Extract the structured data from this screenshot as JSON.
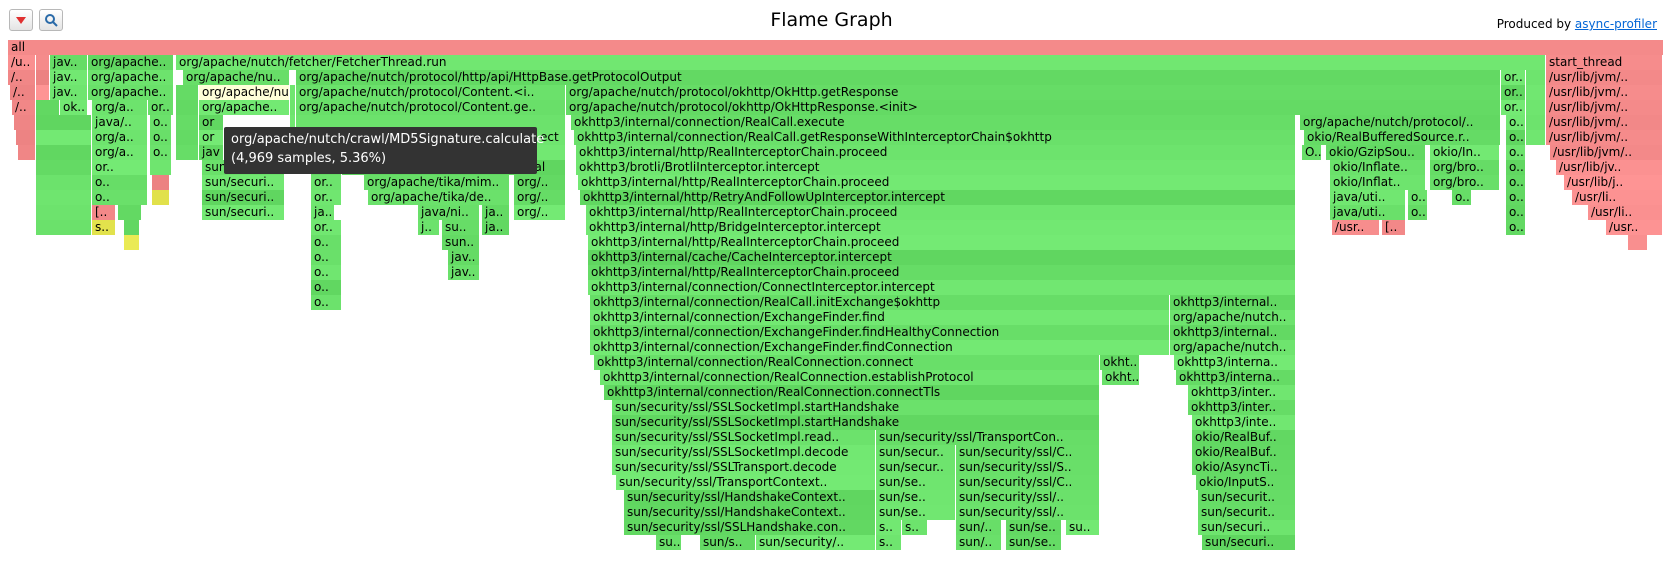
{
  "title": "Flame Graph",
  "produced_by": {
    "prefix": "Produced by ",
    "link_text": "async-profiler"
  },
  "toolbar": [
    {
      "name": "reverse-button",
      "icon": "triangle-down-icon"
    },
    {
      "name": "search-button",
      "icon": "magnifier-icon"
    }
  ],
  "colors": {
    "java": "#6ae06a",
    "native": "#f48a8a",
    "inline": "#e6e650",
    "c1": "#f0a050",
    "highlight": "#ffffd8",
    "root": "#f48a8a"
  },
  "tooltip": {
    "name": "org/apache/nutch/crawl/MD5Signature.calculate",
    "info": "(4,969 samples, 5.36%)"
  },
  "frames": [
    [
      "all",
      0,
      8,
      1663,
      "root"
    ],
    [
      "/u..",
      1,
      8,
      28,
      "native"
    ],
    [
      "",
      1,
      36,
      14,
      "native"
    ],
    [
      "jav..",
      1,
      50,
      38,
      "java"
    ],
    [
      "org/apache..",
      1,
      88,
      86,
      "java"
    ],
    [
      "org/apache/nutch/fetcher/FetcherThread.run",
      1,
      176,
      1370,
      "java"
    ],
    [
      "start_thread",
      1,
      1546,
      117,
      "native"
    ],
    [
      "/..",
      2,
      8,
      28,
      "native"
    ],
    [
      "",
      2,
      36,
      14,
      "native"
    ],
    [
      "jav..",
      2,
      50,
      38,
      "java"
    ],
    [
      "org/apache..",
      2,
      88,
      86,
      "java"
    ],
    [
      "org/apache/nu..",
      2,
      183,
      107,
      "java"
    ],
    [
      "org/apache/nutch/protocol/http/api/HttpBase.getProtocolOutput",
      2,
      296,
      1205,
      "java"
    ],
    [
      "or..",
      2,
      1501,
      25,
      "java"
    ],
    [
      "",
      2,
      1526,
      20,
      "java"
    ],
    [
      "/usr/lib/jvm/..",
      2,
      1546,
      117,
      "native"
    ],
    [
      "/..",
      3,
      10,
      26,
      "native"
    ],
    [
      "",
      3,
      36,
      14,
      "native"
    ],
    [
      "jav..",
      3,
      50,
      38,
      "java"
    ],
    [
      "org/apache..",
      3,
      88,
      86,
      "java"
    ],
    [
      "",
      3,
      176,
      23,
      "java"
    ],
    [
      "org/apache/nu",
      3,
      199,
      91,
      "highlight"
    ],
    [
      "",
      3,
      290,
      6,
      "java"
    ],
    [
      "org/apache/nutch/protocol/Content.<i..",
      3,
      296,
      270,
      "java"
    ],
    [
      "org/apache/nutch/protocol/okhttp/OkHttp.getResponse",
      3,
      566,
      935,
      "java"
    ],
    [
      "or..",
      3,
      1501,
      25,
      "java"
    ],
    [
      "",
      3,
      1526,
      20,
      "java"
    ],
    [
      "/usr/lib/jvm/..",
      3,
      1546,
      117,
      "native"
    ],
    [
      "/..",
      4,
      12,
      24,
      "native"
    ],
    [
      "",
      4,
      36,
      24,
      "java"
    ],
    [
      "ok..",
      4,
      60,
      28,
      "java"
    ],
    [
      "org/a..",
      4,
      92,
      56,
      "java"
    ],
    [
      "or..",
      4,
      148,
      26,
      "java"
    ],
    [
      "",
      4,
      176,
      23,
      "java"
    ],
    [
      "org/apache..",
      4,
      199,
      91,
      "java"
    ],
    [
      "",
      4,
      290,
      6,
      "java"
    ],
    [
      "org/apache/nutch/protocol/Content.ge..",
      4,
      296,
      270,
      "java"
    ],
    [
      "org/apache/nutch/protocol/okhttp/OkHttpResponse.<init>",
      4,
      566,
      935,
      "java"
    ],
    [
      "or..",
      4,
      1501,
      25,
      "java"
    ],
    [
      "",
      4,
      1526,
      20,
      "java"
    ],
    [
      "/usr/lib/jvm/..",
      4,
      1546,
      117,
      "native"
    ],
    [
      "",
      5,
      14,
      22,
      "native"
    ],
    [
      "",
      5,
      36,
      56,
      "java"
    ],
    [
      "java/..",
      5,
      92,
      56,
      "java"
    ],
    [
      "o..",
      5,
      150,
      22,
      "java"
    ],
    [
      "",
      5,
      176,
      23,
      "java"
    ],
    [
      "or",
      5,
      199,
      25,
      "java"
    ],
    [
      "",
      5,
      290,
      6,
      "java"
    ],
    [
      "",
      5,
      296,
      270,
      "java"
    ],
    [
      "okhttp3/internal/connection/RealCall.execute",
      5,
      571,
      725,
      "java"
    ],
    [
      "org/apache/nutch/protocol/..",
      5,
      1300,
      201,
      "java"
    ],
    [
      "o..",
      5,
      1506,
      20,
      "java"
    ],
    [
      "",
      5,
      1526,
      20,
      "java"
    ],
    [
      "/usr/lib/jvm/..",
      5,
      1546,
      117,
      "native"
    ],
    [
      "",
      6,
      16,
      20,
      "native"
    ],
    [
      "",
      6,
      36,
      56,
      "java"
    ],
    [
      "org/a..",
      6,
      92,
      56,
      "java"
    ],
    [
      "o..",
      6,
      150,
      22,
      "java"
    ],
    [
      "",
      6,
      176,
      23,
      "java"
    ],
    [
      "or",
      6,
      199,
      25,
      "java"
    ],
    [
      "ect",
      6,
      537,
      29,
      "java"
    ],
    [
      "okhttp3/internal/connection/RealCall.getResponseWithInterceptorChain$okhttp",
      6,
      574,
      722,
      "java"
    ],
    [
      "okio/RealBufferedSource.r..",
      6,
      1304,
      197,
      "java"
    ],
    [
      "o..",
      6,
      1506,
      20,
      "java"
    ],
    [
      "",
      6,
      1526,
      20,
      "java"
    ],
    [
      "/usr/lib/jvm/..",
      6,
      1546,
      117,
      "native"
    ],
    [
      "",
      7,
      18,
      18,
      "native"
    ],
    [
      "",
      7,
      36,
      56,
      "java"
    ],
    [
      "org/a..",
      7,
      92,
      56,
      "java"
    ],
    [
      "o..",
      7,
      150,
      22,
      "java"
    ],
    [
      "",
      7,
      176,
      23,
      "java"
    ],
    [
      "jav",
      7,
      199,
      25,
      "java"
    ],
    [
      "",
      7,
      296,
      270,
      "java"
    ],
    [
      "okhttp3/internal/http/RealInterceptorChain.proceed",
      7,
      576,
      720,
      "java"
    ],
    [
      "O..",
      7,
      1302,
      20,
      "java"
    ],
    [
      "okio/GzipSou..",
      7,
      1326,
      100,
      "java"
    ],
    [
      "okio/In..",
      7,
      1430,
      70,
      "java"
    ],
    [
      "o..",
      7,
      1506,
      20,
      "java"
    ],
    [
      "/usr/lib/jvm/..",
      7,
      1550,
      113,
      "native"
    ],
    [
      "",
      8,
      36,
      56,
      "java"
    ],
    [
      "or..",
      8,
      92,
      56,
      "java"
    ],
    [
      "",
      8,
      150,
      22,
      "java"
    ],
    [
      "sun/securi..",
      8,
      202,
      83,
      "java"
    ],
    [
      "o..",
      8,
      311,
      31,
      "java"
    ],
    [
      "org/apache/tika/mime/Magic.eval",
      8,
      342,
      224,
      "java"
    ],
    [
      "okhttp3/brotli/BrotliInterceptor.intercept",
      8,
      576,
      720,
      "java"
    ],
    [
      "okio/Inflate..",
      8,
      1330,
      96,
      "java"
    ],
    [
      "org/bro..",
      8,
      1430,
      70,
      "java"
    ],
    [
      "o..",
      8,
      1506,
      20,
      "java"
    ],
    [
      "/usr/lib/jv..",
      8,
      1556,
      107,
      "native"
    ],
    [
      "",
      9,
      36,
      56,
      "java"
    ],
    [
      "o..",
      9,
      92,
      56,
      "java"
    ],
    [
      "",
      9,
      152,
      18,
      "native"
    ],
    [
      "sun/securi..",
      9,
      202,
      83,
      "java"
    ],
    [
      "or..",
      9,
      311,
      31,
      "java"
    ],
    [
      "org/apache/tika/mim..",
      9,
      364,
      146,
      "java"
    ],
    [
      "org/..",
      9,
      514,
      52,
      "java"
    ],
    [
      "okhttp3/internal/http/RealInterceptorChain.proceed",
      9,
      578,
      718,
      "java"
    ],
    [
      "okio/Inflat..",
      9,
      1330,
      96,
      "java"
    ],
    [
      "org/bro..",
      9,
      1430,
      70,
      "java"
    ],
    [
      "o..",
      9,
      1506,
      20,
      "java"
    ],
    [
      "/usr/lib/j..",
      9,
      1564,
      99,
      "native"
    ],
    [
      "",
      10,
      36,
      56,
      "java"
    ],
    [
      "o..",
      10,
      92,
      56,
      "java"
    ],
    [
      "",
      10,
      152,
      18,
      "inline"
    ],
    [
      "sun/securi..",
      10,
      202,
      83,
      "java"
    ],
    [
      "or..",
      10,
      311,
      31,
      "java"
    ],
    [
      "org/apache/tika/de..",
      10,
      368,
      142,
      "java"
    ],
    [
      "org/..",
      10,
      514,
      52,
      "java"
    ],
    [
      "okhttp3/internal/http/RetryAndFollowUpInterceptor.intercept",
      10,
      580,
      716,
      "java"
    ],
    [
      "java/uti..",
      10,
      1330,
      76,
      "java"
    ],
    [
      "o..",
      10,
      1408,
      20,
      "java"
    ],
    [
      "o..",
      10,
      1452,
      20,
      "java"
    ],
    [
      "o..",
      10,
      1506,
      20,
      "java"
    ],
    [
      "/usr/li..",
      10,
      1572,
      91,
      "native"
    ],
    [
      "",
      11,
      36,
      56,
      "java"
    ],
    [
      "[..",
      11,
      92,
      24,
      "native"
    ],
    [
      "",
      11,
      118,
      24,
      "java"
    ],
    [
      "sun/securi..",
      11,
      202,
      83,
      "java"
    ],
    [
      "ja..",
      11,
      311,
      24,
      "java"
    ],
    [
      "java/ni..",
      11,
      418,
      62,
      "java"
    ],
    [
      "ja..",
      11,
      482,
      28,
      "java"
    ],
    [
      "org/..",
      11,
      514,
      52,
      "java"
    ],
    [
      "okhttp3/internal/http/RealInterceptorChain.proceed",
      11,
      586,
      710,
      "java"
    ],
    [
      "java/uti..",
      11,
      1330,
      76,
      "java"
    ],
    [
      "o..",
      11,
      1408,
      20,
      "java"
    ],
    [
      "o..",
      11,
      1506,
      20,
      "java"
    ],
    [
      "/usr/li..",
      11,
      1588,
      75,
      "native"
    ],
    [
      "",
      12,
      36,
      56,
      "java"
    ],
    [
      "s..",
      12,
      92,
      24,
      "inline"
    ],
    [
      "",
      12,
      124,
      16,
      "java"
    ],
    [
      "or..",
      12,
      311,
      31,
      "java"
    ],
    [
      "j..",
      12,
      418,
      22,
      "java"
    ],
    [
      "su..",
      12,
      442,
      38,
      "java"
    ],
    [
      "ja..",
      12,
      482,
      28,
      "java"
    ],
    [
      "okhttp3/internal/http/BridgeInterceptor.intercept",
      12,
      586,
      710,
      "java"
    ],
    [
      "/usr..",
      12,
      1332,
      48,
      "native"
    ],
    [
      "[..",
      12,
      1382,
      24,
      "native"
    ],
    [
      "o..",
      12,
      1506,
      20,
      "java"
    ],
    [
      "/usr..",
      12,
      1606,
      57,
      "native"
    ],
    [
      "",
      13,
      124,
      16,
      "inline"
    ],
    [
      "o..",
      13,
      311,
      31,
      "java"
    ],
    [
      "sun..",
      13,
      442,
      38,
      "java"
    ],
    [
      "okhttp3/internal/http/RealInterceptorChain.proceed",
      13,
      588,
      708,
      "java"
    ],
    [
      "",
      13,
      1628,
      20,
      "native"
    ],
    [
      "o..",
      14,
      311,
      31,
      "java"
    ],
    [
      "jav..",
      14,
      448,
      32,
      "java"
    ],
    [
      "okhttp3/internal/cache/CacheInterceptor.intercept",
      14,
      588,
      708,
      "java"
    ],
    [
      "o..",
      15,
      311,
      31,
      "java"
    ],
    [
      "jav..",
      15,
      448,
      32,
      "java"
    ],
    [
      "okhttp3/internal/http/RealInterceptorChain.proceed",
      15,
      588,
      708,
      "java"
    ],
    [
      "o..",
      16,
      311,
      31,
      "java"
    ],
    [
      "okhttp3/internal/connection/ConnectInterceptor.intercept",
      16,
      588,
      708,
      "java"
    ],
    [
      "o..",
      17,
      311,
      31,
      "java"
    ],
    [
      "okhttp3/internal/connection/RealCall.initExchange$okhttp",
      17,
      590,
      580,
      "java"
    ],
    [
      "okhttp3/internal..",
      17,
      1170,
      126,
      "java"
    ],
    [
      "okhttp3/internal/connection/ExchangeFinder.find",
      18,
      590,
      580,
      "java"
    ],
    [
      "org/apache/nutch..",
      18,
      1170,
      126,
      "java"
    ],
    [
      "okhttp3/internal/connection/ExchangeFinder.findHealthyConnection",
      19,
      590,
      580,
      "java"
    ],
    [
      "okhttp3/internal..",
      19,
      1170,
      126,
      "java"
    ],
    [
      "okhttp3/internal/connection/ExchangeFinder.findConnection",
      20,
      590,
      580,
      "java"
    ],
    [
      "org/apache/nutch..",
      20,
      1170,
      126,
      "java"
    ],
    [
      "okhttp3/internal/connection/RealConnection.connect",
      21,
      594,
      506,
      "java"
    ],
    [
      "okht..",
      21,
      1100,
      40,
      "java"
    ],
    [
      "okhttp3/interna..",
      21,
      1174,
      122,
      "java"
    ],
    [
      "okhttp3/internal/connection/RealConnection.establishProtocol",
      22,
      600,
      500,
      "java"
    ],
    [
      "okht..",
      22,
      1102,
      38,
      "java"
    ],
    [
      "okhttp3/interna..",
      22,
      1176,
      120,
      "java"
    ],
    [
      "okhttp3/internal/connection/RealConnection.connectTls",
      23,
      604,
      496,
      "java"
    ],
    [
      "okhttp3/inter..",
      23,
      1188,
      108,
      "java"
    ],
    [
      "sun/security/ssl/SSLSocketImpl.startHandshake",
      24,
      612,
      488,
      "java"
    ],
    [
      "okhttp3/inter..",
      24,
      1188,
      108,
      "java"
    ],
    [
      "sun/security/ssl/SSLSocketImpl.startHandshake",
      25,
      612,
      488,
      "java"
    ],
    [
      "okhttp3/inte..",
      25,
      1192,
      104,
      "java"
    ],
    [
      "sun/security/ssl/SSLSocketImpl.read..",
      26,
      612,
      264,
      "java"
    ],
    [
      "sun/security/ssl/TransportCon..",
      26,
      876,
      224,
      "java"
    ],
    [
      "okio/RealBuf..",
      26,
      1192,
      104,
      "java"
    ],
    [
      "sun/security/ssl/SSLSocketImpl.decode",
      27,
      612,
      264,
      "java"
    ],
    [
      "sun/secur..",
      27,
      876,
      80,
      "java"
    ],
    [
      "sun/security/ssl/C..",
      27,
      956,
      144,
      "java"
    ],
    [
      "okio/RealBuf..",
      27,
      1192,
      104,
      "java"
    ],
    [
      "sun/security/ssl/SSLTransport.decode",
      28,
      612,
      264,
      "java"
    ],
    [
      "sun/secur..",
      28,
      876,
      80,
      "java"
    ],
    [
      "sun/security/ssl/S..",
      28,
      956,
      144,
      "java"
    ],
    [
      "okio/AsyncTi..",
      28,
      1192,
      104,
      "java"
    ],
    [
      "sun/security/ssl/TransportContext..",
      29,
      616,
      260,
      "java"
    ],
    [
      "sun/se..",
      29,
      876,
      80,
      "java"
    ],
    [
      "sun/security/ssl/C..",
      29,
      956,
      144,
      "java"
    ],
    [
      "okio/InputS..",
      29,
      1196,
      100,
      "java"
    ],
    [
      "sun/security/ssl/HandshakeContext..",
      30,
      624,
      252,
      "java"
    ],
    [
      "sun/se..",
      30,
      876,
      80,
      "java"
    ],
    [
      "sun/security/ssl/..",
      30,
      956,
      144,
      "java"
    ],
    [
      "sun/securit..",
      30,
      1198,
      98,
      "java"
    ],
    [
      "sun/security/ssl/HandshakeContext..",
      31,
      624,
      252,
      "java"
    ],
    [
      "sun/se..",
      31,
      876,
      80,
      "java"
    ],
    [
      "sun/security/ssl/..",
      31,
      956,
      144,
      "java"
    ],
    [
      "sun/securit..",
      31,
      1198,
      98,
      "java"
    ],
    [
      "sun/security/ssl/SSLHandshake.con..",
      32,
      624,
      252,
      "java"
    ],
    [
      "s..",
      32,
      876,
      26,
      "java"
    ],
    [
      "s..",
      32,
      902,
      26,
      "java"
    ],
    [
      "sun/..",
      32,
      956,
      46,
      "java"
    ],
    [
      "sun/se..",
      32,
      1006,
      56,
      "java"
    ],
    [
      "su..",
      32,
      1066,
      34,
      "java"
    ],
    [
      "sun/securi..",
      32,
      1198,
      98,
      "java"
    ],
    [
      "su..",
      33,
      656,
      26,
      "java"
    ],
    [
      "sun/s..",
      33,
      700,
      56,
      "java"
    ],
    [
      "sun/security/..",
      33,
      756,
      120,
      "java"
    ],
    [
      "s..",
      33,
      876,
      26,
      "java"
    ],
    [
      "sun/..",
      33,
      956,
      46,
      "java"
    ],
    [
      "sun/se..",
      33,
      1006,
      56,
      "java"
    ],
    [
      "sun/securi..",
      33,
      1202,
      94,
      "java"
    ]
  ]
}
